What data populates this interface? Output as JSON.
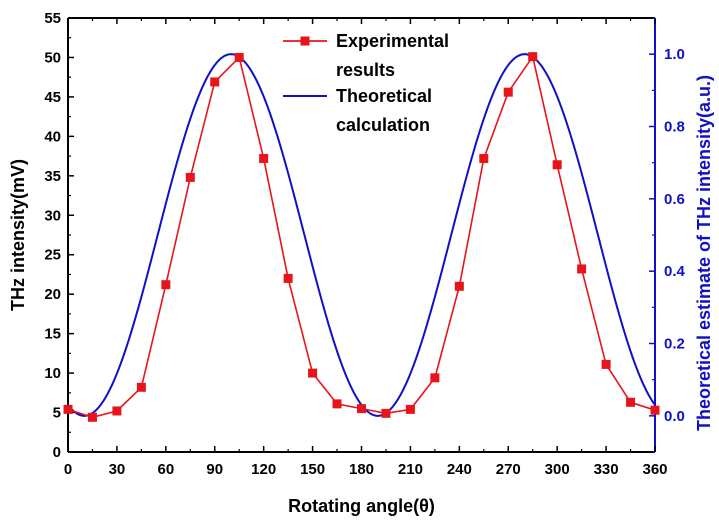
{
  "chart_data": {
    "type": "line",
    "xlabel": "Rotating angle(θ)",
    "ylabel": "THz intensity(mV)",
    "y2label": "Theoretical estimate of THz intensity(a.u.)",
    "xlim": [
      0,
      360
    ],
    "ylim": [
      0,
      55
    ],
    "y2lim": [
      -0.1,
      1.1
    ],
    "xticks": [
      0,
      30,
      60,
      90,
      120,
      150,
      180,
      210,
      240,
      270,
      300,
      330,
      360
    ],
    "yticks": [
      0,
      5,
      10,
      15,
      20,
      25,
      30,
      35,
      40,
      45,
      50,
      55
    ],
    "y2ticks": [
      0.0,
      0.2,
      0.4,
      0.6,
      0.8,
      1.0
    ],
    "y2tick_labels": [
      "0.0",
      "0.2",
      "0.4",
      "0.6",
      "0.8",
      "1.0"
    ],
    "legend_position": "top-center",
    "grid": false,
    "series": [
      {
        "name": "Experimental results",
        "axis": "left",
        "color": "#e8141c",
        "marker": "square",
        "x": [
          0,
          15,
          30,
          45,
          60,
          75,
          90,
          105,
          120,
          135,
          150,
          165,
          180,
          195,
          210,
          225,
          240,
          255,
          270,
          285,
          300,
          315,
          330,
          345,
          360
        ],
        "y": [
          5.4,
          4.4,
          5.2,
          8.2,
          21.2,
          34.8,
          46.9,
          50.0,
          37.2,
          22.0,
          10.0,
          6.1,
          5.5,
          4.9,
          5.4,
          9.4,
          21.0,
          37.2,
          45.6,
          50.1,
          36.4,
          23.2,
          11.1,
          6.3,
          5.3
        ]
      },
      {
        "name": "Theoretical calculation",
        "axis": "right",
        "color": "#1010c8",
        "marker": "none",
        "function": "cos^2",
        "period": 180,
        "peak_x": [
          100,
          280
        ],
        "amplitude": 1.0
      }
    ]
  }
}
